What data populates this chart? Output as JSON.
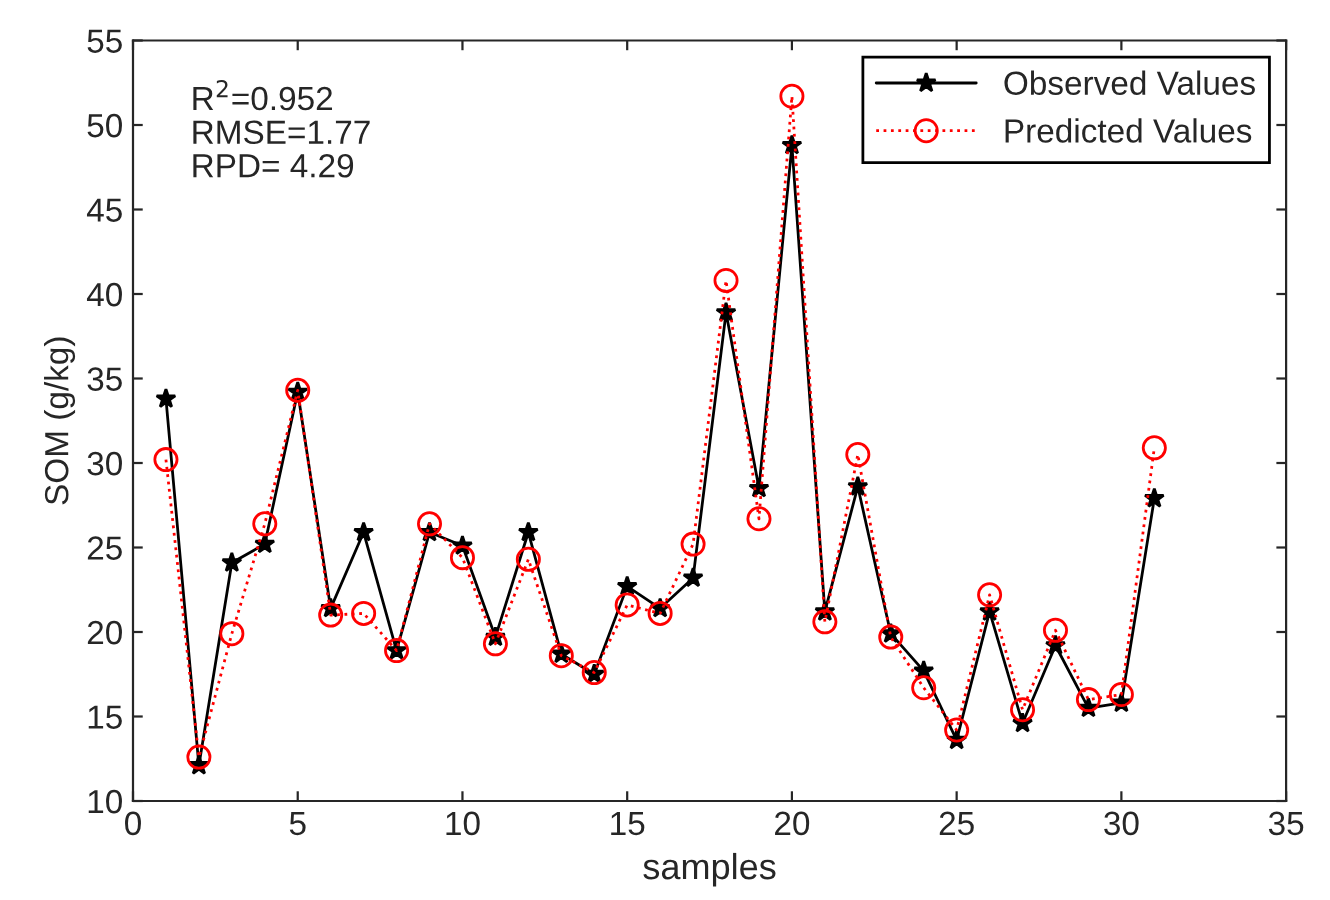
{
  "chart_data": {
    "type": "line",
    "xlabel": "samples",
    "ylabel": "SOM (g/kg)",
    "x": [
      1,
      2,
      3,
      4,
      5,
      6,
      7,
      8,
      9,
      10,
      11,
      12,
      13,
      14,
      15,
      16,
      17,
      18,
      19,
      20,
      21,
      22,
      23,
      24,
      25,
      26,
      27,
      28,
      29,
      30,
      31
    ],
    "series": [
      {
        "name": "Observed Values",
        "color": "#000000",
        "marker": "star",
        "line_style": "solid",
        "values": [
          33.8,
          12.1,
          24.1,
          25.2,
          34.2,
          21.4,
          25.9,
          18.9,
          25.9,
          25.1,
          19.7,
          25.9,
          18.7,
          17.5,
          22.7,
          21.4,
          23.2,
          38.9,
          28.5,
          48.8,
          21.2,
          28.6,
          19.9,
          17.7,
          13.6,
          21.2,
          14.6,
          19.2,
          15.5,
          15.8,
          27.9
        ]
      },
      {
        "name": "Predicted Values",
        "color": "#ff0000",
        "marker": "circle",
        "line_style": "dotted",
        "values": [
          30.2,
          12.6,
          19.9,
          26.4,
          34.3,
          21.0,
          21.1,
          18.9,
          26.4,
          24.4,
          19.3,
          24.3,
          18.6,
          17.6,
          21.6,
          21.1,
          25.2,
          40.8,
          26.7,
          51.7,
          20.6,
          30.5,
          19.7,
          16.7,
          14.2,
          22.2,
          15.4,
          20.1,
          16.0,
          16.3,
          30.9
        ]
      }
    ],
    "xlim": [
      0,
      35
    ],
    "xticks": [
      0,
      5,
      10,
      15,
      20,
      25,
      30,
      35
    ],
    "ylim": [
      10,
      55
    ],
    "yticks": [
      10,
      15,
      20,
      25,
      30,
      35,
      40,
      45,
      50,
      55
    ],
    "grid": false,
    "legend": "top right",
    "annotations": [
      "R$^{2}$=0.952\nRMSE=1.77\nRPD= 4.29"
    ]
  }
}
